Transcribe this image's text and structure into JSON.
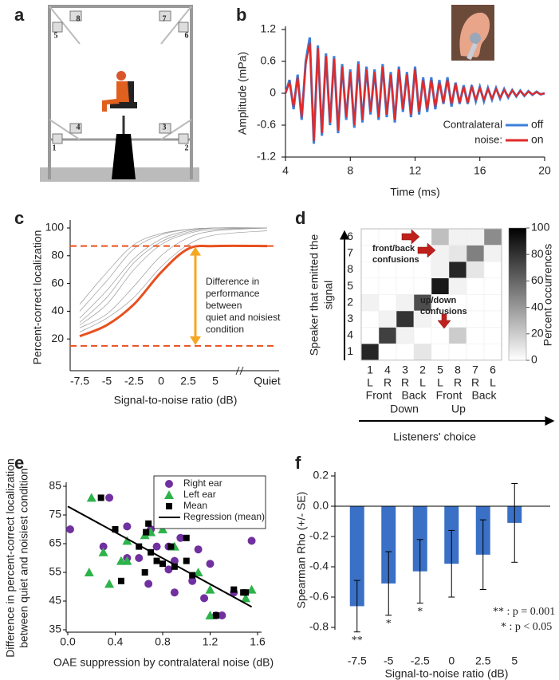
{
  "panel_labels": [
    "a",
    "b",
    "c",
    "d",
    "e",
    "f"
  ],
  "setup_photo": {
    "speaker_labels": [
      "1",
      "2",
      "3",
      "4",
      "5",
      "6",
      "7",
      "8"
    ]
  },
  "chart_data": [
    {
      "type": "line",
      "xlabel": "Time (ms)",
      "ylabel": "Amplitude (mPa)",
      "legend_title": [
        "Contralateral",
        "noise:"
      ],
      "x": [
        4,
        4.25,
        4.5,
        4.75,
        5,
        5.25,
        5.5,
        5.75,
        6,
        6.25,
        6.5,
        6.75,
        7,
        7.25,
        7.5,
        7.75,
        8,
        8.25,
        8.5,
        8.75,
        9,
        9.25,
        9.5,
        9.75,
        10,
        10.25,
        10.5,
        10.75,
        11,
        11.25,
        11.5,
        11.75,
        12,
        12.25,
        12.5,
        12.75,
        13,
        13.25,
        13.5,
        13.75,
        14,
        14.25,
        14.5,
        14.75,
        15,
        15.25,
        15.5,
        15.75,
        16,
        16.25,
        16.5,
        16.75,
        17,
        17.25,
        17.5,
        17.75,
        18,
        18.25,
        18.5,
        18.75,
        19,
        19.25,
        19.5,
        19.75,
        20
      ],
      "series": [
        {
          "name": "off",
          "color": "#3d7fd9",
          "values": [
            0,
            0.25,
            -0.3,
            0.35,
            -0.5,
            0.6,
            1.05,
            -0.95,
            0.9,
            -0.8,
            0.75,
            -0.6,
            0.7,
            -0.75,
            0.55,
            -0.5,
            0.45,
            -0.65,
            0.6,
            -0.55,
            0.5,
            -0.4,
            0.45,
            -0.5,
            0.55,
            -0.45,
            0.4,
            -0.55,
            0.5,
            -0.35,
            0.4,
            -0.45,
            0.5,
            -0.4,
            0.3,
            -0.35,
            0.3,
            -0.3,
            0.25,
            -0.2,
            0.3,
            -0.25,
            0.2,
            -0.2,
            0.15,
            -0.2,
            0.15,
            -0.15,
            0.12,
            -0.15,
            0.1,
            -0.12,
            0.1,
            -0.1,
            0.08,
            -0.08,
            0.06,
            -0.06,
            0.05,
            -0.05,
            0.04,
            -0.03,
            0.03,
            -0.02,
            0
          ]
        },
        {
          "name": "on",
          "color": "#e02a2a",
          "values": [
            0,
            0.2,
            -0.25,
            0.3,
            -0.45,
            0.55,
            0.95,
            -0.9,
            0.85,
            -0.75,
            0.7,
            -0.55,
            0.65,
            -0.7,
            0.5,
            -0.45,
            0.4,
            -0.6,
            0.55,
            -0.5,
            0.45,
            -0.35,
            0.4,
            -0.45,
            0.5,
            -0.4,
            0.35,
            -0.5,
            0.45,
            -0.3,
            0.35,
            -0.4,
            0.45,
            -0.35,
            0.25,
            -0.3,
            0.25,
            -0.25,
            0.2,
            -0.18,
            0.25,
            -0.2,
            0.18,
            -0.18,
            0.12,
            -0.18,
            0.12,
            -0.12,
            0.1,
            -0.12,
            0.08,
            -0.1,
            0.08,
            -0.08,
            0.06,
            -0.06,
            0.05,
            -0.05,
            0.04,
            -0.04,
            0.03,
            -0.02,
            0.02,
            -0.02,
            0
          ]
        }
      ],
      "xlim": [
        4,
        20
      ],
      "xticks": [
        4,
        8,
        12,
        16,
        20
      ],
      "ylim": [
        -1.2,
        1.2
      ],
      "yticks": [
        -1.2,
        -0.6,
        {
          "value": 0,
          "label": "0"
        },
        0.6,
        1.2
      ]
    },
    {
      "type": "curves",
      "xlabel": "Signal-to-noise ratio (dB)",
      "ylabel": "Percent-correct localization",
      "categories": [
        "-7.5",
        "-5",
        "-2.5",
        "0",
        "2.5",
        "5",
        "Quiet"
      ],
      "fit": {
        "color": "#e8501e",
        "values": [
          22,
          30,
          45,
          68,
          85,
          87,
          87
        ]
      },
      "listener_color": "#9a9a9a",
      "listener_curves": [
        [
          35,
          55,
          78,
          92,
          98,
          100,
          100
        ],
        [
          30,
          45,
          70,
          88,
          96,
          99,
          100
        ],
        [
          40,
          62,
          85,
          95,
          99,
          100,
          100
        ],
        [
          28,
          38,
          58,
          80,
          93,
          98,
          100
        ],
        [
          45,
          68,
          88,
          96,
          99,
          100,
          100
        ],
        [
          32,
          50,
          75,
          90,
          97,
          100,
          100
        ],
        [
          25,
          35,
          50,
          72,
          88,
          95,
          98
        ]
      ],
      "hlines": [
        87,
        15
      ],
      "hline_color": "#e8501e",
      "arrow_color": "#f5a623",
      "annotation": [
        "Difference in",
        "performance",
        "between",
        "quiet and noisiest",
        "condition"
      ],
      "ylim": [
        0,
        100
      ],
      "yticks": [
        20,
        40,
        60,
        80,
        100
      ]
    },
    {
      "type": "heatmap",
      "ylabel": [
        "Speaker that emitted the",
        "signal"
      ],
      "xlabel": "Listeners' choice",
      "x_categories": [
        "1",
        "4",
        "3",
        "2",
        "5",
        "8",
        "7",
        "6"
      ],
      "x_sides": [
        "L",
        "R",
        "R",
        "L",
        "L",
        "R",
        "R",
        "L"
      ],
      "x_groups": [
        "Front",
        "Back",
        "Front",
        "Back"
      ],
      "x_supergroups": [
        "Down",
        "Up"
      ],
      "y_categories": [
        "6",
        "7",
        "8",
        "5",
        "2",
        "3",
        "4",
        "1"
      ],
      "values": [
        [
          0,
          0,
          0,
          0,
          25,
          5,
          5,
          45
        ],
        [
          0,
          0,
          0,
          0,
          5,
          10,
          50,
          5
        ],
        [
          0,
          0,
          0,
          0,
          5,
          85,
          10,
          0
        ],
        [
          0,
          0,
          0,
          0,
          90,
          5,
          0,
          0
        ],
        [
          5,
          0,
          5,
          70,
          0,
          0,
          0,
          0
        ],
        [
          0,
          5,
          80,
          5,
          0,
          0,
          0,
          0
        ],
        [
          0,
          75,
          5,
          0,
          0,
          20,
          0,
          0
        ],
        [
          85,
          0,
          0,
          10,
          0,
          0,
          0,
          0
        ]
      ],
      "annotations": [
        [
          "front/back",
          "confusions"
        ],
        [
          "up/down",
          "confusions"
        ]
      ],
      "colorbar": {
        "label": "Percent occurrences",
        "lim": [
          0,
          100
        ],
        "ticks": [
          0,
          20,
          40,
          60,
          80,
          100
        ]
      }
    },
    {
      "type": "scatter",
      "xlabel": "OAE suppression by contralateral noise (dB)",
      "ylabel": [
        "Difference in percent-correct localization",
        "between quiet and noisiest condition"
      ],
      "series": [
        {
          "name": "Right ear",
          "color": "#7030a0",
          "marker": "circle",
          "x": [
            0.02,
            0.3,
            0.35,
            0.5,
            0.5,
            0.6,
            0.68,
            0.7,
            0.75,
            0.85,
            0.9,
            0.9,
            0.95,
            1.1,
            1.05,
            1.15,
            1.2,
            1.25,
            1.3,
            1.4,
            1.55,
            0.85
          ],
          "values": [
            70,
            64,
            81,
            71,
            60,
            60,
            51,
            70,
            64,
            64,
            59,
            48,
            67,
            63,
            52,
            46,
            58,
            40,
            40,
            48,
            66,
            56
          ]
        },
        {
          "name": "Left ear",
          "color": "#2db34a",
          "marker": "triangle",
          "x": [
            0.18,
            0.2,
            0.3,
            0.35,
            0.45,
            0.5,
            0.5,
            0.65,
            0.7,
            0.8,
            0.85,
            0.9,
            1.1,
            1.2,
            1.2,
            1.5,
            1.55
          ],
          "values": [
            55,
            81,
            62,
            51,
            59,
            59,
            66,
            68,
            69,
            70,
            72,
            64,
            55,
            40,
            49,
            46,
            49
          ]
        },
        {
          "name": "Mean",
          "color": "#000000",
          "marker": "square",
          "x": [
            0.28,
            0.4,
            0.45,
            0.6,
            0.65,
            0.68,
            0.7,
            0.75,
            0.8,
            0.87,
            0.9,
            1.0,
            1.0,
            1.05,
            1.25,
            1.4,
            1.48,
            1.5,
            0.66
          ],
          "values": [
            81,
            70,
            52,
            64,
            55,
            72,
            62,
            59,
            58,
            64,
            57,
            59,
            67,
            54,
            40,
            49,
            48,
            48,
            69
          ]
        }
      ],
      "regression": {
        "name": "Regression (mean)",
        "color": "#000000",
        "x": [
          0,
          1.55
        ],
        "values": [
          78,
          43
        ]
      },
      "xlim": [
        0,
        1.6
      ],
      "xticks": [
        {
          "value": 0,
          "label": "0.0"
        },
        0.4,
        0.8,
        1.2,
        1.6
      ],
      "ylim": [
        35,
        85
      ],
      "yticks": [
        35,
        45,
        55,
        65,
        75,
        85
      ]
    },
    {
      "type": "bar",
      "xlabel": "Signal-to-noise ratio (dB)",
      "ylabel": "Spearman Rho (+/- SE)",
      "categories": [
        "-7.5",
        "-5",
        "-2.5",
        "0",
        "2.5",
        "5"
      ],
      "values": [
        -0.66,
        -0.51,
        -0.43,
        -0.38,
        -0.32,
        -0.11
      ],
      "errors": [
        0.17,
        0.21,
        0.21,
        0.22,
        0.23,
        0.26
      ],
      "sig_labels": [
        "**",
        "*",
        "*",
        null,
        null,
        null
      ],
      "notes": [
        "** : p = 0.001",
        "* : p < 0.05"
      ],
      "color": "#3a70c6",
      "ylim": [
        -0.8,
        0.2
      ],
      "yticks": [
        -0.8,
        -0.6,
        -0.4,
        -0.2,
        {
          "value": 0,
          "label": "0.0"
        },
        0.2
      ]
    }
  ]
}
